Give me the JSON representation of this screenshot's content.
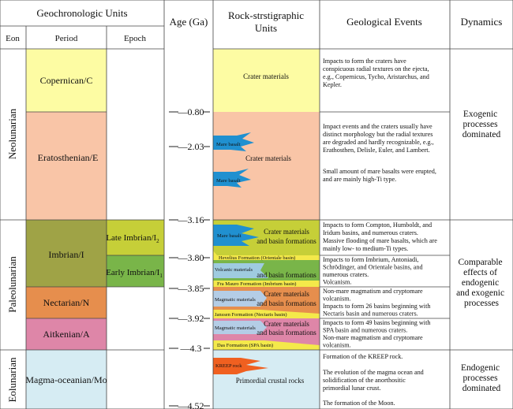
{
  "headers": {
    "geochronologic_units": "Geochronologic Units",
    "eon": "Eon",
    "period": "Period",
    "epoch": "Epoch",
    "age": "Age (Ga)",
    "rock_units": [
      "Rock-strstigraphic",
      "Units"
    ],
    "events": "Geological Events",
    "dynamics": "Dynamics"
  },
  "eons": [
    {
      "name": "Neolunarian"
    },
    {
      "name": "Paleolunarian"
    },
    {
      "name": "Eolunarian"
    }
  ],
  "periods": [
    {
      "name": "Copernican/C",
      "color": "#fdfca3"
    },
    {
      "name": "Eratosthenian/E",
      "color": "#f9c5a7"
    },
    {
      "name": "Imbrian/I",
      "color": "#9fa346"
    },
    {
      "name": "Nectarian/N",
      "color": "#e68e4d"
    },
    {
      "name": "Aitkenian/A",
      "color": "#de86a8"
    },
    {
      "name": "Magma-oceanian/Mo",
      "color": "#d6ecf3"
    }
  ],
  "epochs": [
    {
      "name": "Late Imbrian/I",
      "sub": "2",
      "color": "#c6cf38"
    },
    {
      "name": "Early Imbrian/I",
      "sub": "1",
      "color": "#79b549"
    }
  ],
  "ages": [
    "0.80",
    "2.03",
    "3.16",
    "3.80",
    "3.85",
    "3.92",
    "4.3",
    "4.52"
  ],
  "rock_units": {
    "crater_materials_1": "Crater materials",
    "mare_basalt_1": "Mare basalt",
    "crater_materials_2": "Crater materials",
    "mare_basalt_2": "Mare basalt",
    "mare_basalt_3": "Mare basalt",
    "crater_basin_1": [
      "Crater materials",
      "and basin formations"
    ],
    "hevelius": "Hevelius Formation (Orientale basin)",
    "volcanic": "Volcanic materials",
    "crater_basin_2": "and basin formations",
    "fra_mauro": "Fra Mauro Formation (Imbrium basin)",
    "magmatic_1": "Magmatic materials",
    "crater_basin_3": [
      "Crater materials",
      "and basin formations"
    ],
    "janssen": "Janssen Formation (Nectaris basin)",
    "magmatic_2": "Magmatic materials",
    "crater_basin_4": [
      "Crater materials",
      "and basin formations"
    ],
    "das": "Das Formation (SPA basin)",
    "kreep": "KREEP rock",
    "primordial": "Primordial crustal rocks"
  },
  "events": {
    "copernican": [
      "Impacts to form the craters have",
      "conspicuous radial textures on the ejecta,",
      "e.g., Copernicus, Tycho, Aristarchus, and",
      "Kepler."
    ],
    "eratosthenian_1": [
      "Impact events and the craters usually have",
      "distinct morphology but the radial textures",
      "are degraded and hardly recognizable, e.g.,",
      "Erathosthen, Delisle, Euler, and Lambert."
    ],
    "eratosthenian_2": [
      "Small amount of mare basalts were erupted,",
      "and are mainly high-Ti type."
    ],
    "late_imbrian": [
      "Impacts to form Compton, Humboldt, and",
      "Iridum basins, and numerous craters.",
      "Massive flooding of mare basalts, which are",
      "mainly low- to medium-Ti types."
    ],
    "early_imbrian": [
      "Impacts to form Imbrium, Antoniadi,",
      "Schrödinger, and Orientale basins, and",
      "numerous craters.",
      "Volcanism."
    ],
    "nectarian": [
      "Non-mare magmatism and cryptomare",
      "volcanism.",
      "Impacts to form 26 basins beginning with",
      "Nectaris basin and numerous craters."
    ],
    "aitkenian": [
      "Impacts to form 49 basins beginning with",
      "SPA basin and numerous craters.",
      "Non-mare magmatism and cryptomare",
      "volcanism."
    ],
    "magma_1": "Formation of the KREEP rock.",
    "magma_2": [
      "The evolution of the magma ocean and",
      "solidification of the anorthositic",
      "primordial lunar crust."
    ],
    "magma_3": "The formation of the Moon."
  },
  "dynamics": {
    "neolunarian": [
      "Exogenic",
      "processes",
      "dominated"
    ],
    "paleolunarian": [
      "Comparable",
      "effects of",
      "endogenic",
      "and exogenic",
      "processes"
    ],
    "eolunarian": [
      "Endogenic",
      "processes",
      "dominated"
    ]
  }
}
